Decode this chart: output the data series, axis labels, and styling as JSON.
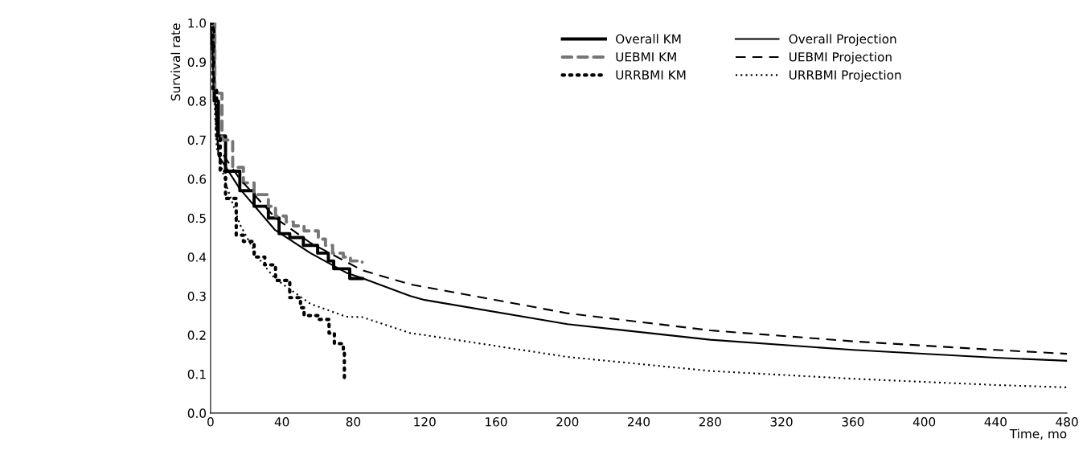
{
  "chart_data": {
    "type": "line",
    "xlabel": "Time, mo",
    "ylabel": "Survival rate",
    "xlim": [
      0,
      480
    ],
    "xticks": [
      0,
      40,
      80,
      120,
      160,
      200,
      240,
      280,
      320,
      360,
      400,
      440,
      480
    ],
    "ylim": [
      0,
      1
    ],
    "yticks": [
      {
        "value": 0,
        "label": "0.0"
      },
      0.1,
      0.2,
      0.3,
      0.4,
      0.5,
      0.6,
      0.7,
      0.8,
      0.9,
      {
        "value": 1,
        "label": "1.0"
      }
    ],
    "grid": false,
    "legend": "top right",
    "marker": "none",
    "series": [
      {
        "name": "Overall KM",
        "type": "step",
        "line_style": "solid",
        "color": "#000000",
        "x": [
          0,
          2,
          4.4,
          8.4,
          16.4,
          24.4,
          32.4,
          38.4,
          44.4,
          52,
          60,
          66,
          69,
          74,
          78,
          85
        ],
        "values": [
          1.0,
          0.8,
          0.71,
          0.62,
          0.57,
          0.53,
          0.5,
          0.46,
          0.45,
          0.43,
          0.41,
          0.39,
          0.37,
          0.37,
          0.345,
          0.345
        ]
      },
      {
        "name": "Overall Projection",
        "line_style": "solid",
        "color": "#000000",
        "x": [
          0,
          4.4,
          16.4,
          36,
          56,
          76,
          85,
          112,
          120,
          200,
          280,
          360,
          440,
          480
        ],
        "values": [
          1.0,
          0.66,
          0.575,
          0.47,
          0.41,
          0.36,
          0.346,
          0.3,
          0.29,
          0.228,
          0.188,
          0.162,
          0.142,
          0.134
        ]
      },
      {
        "name": "UEBMI KM",
        "type": "step",
        "line_style": "dashed",
        "color": "#767676",
        "x": [
          0,
          2.4,
          6.4,
          12.4,
          18.4,
          24.4,
          32.4,
          36.4,
          42.4,
          46.4,
          52.4,
          60.4,
          64.4,
          68.4,
          74.4,
          78.4,
          85
        ],
        "values": [
          1.0,
          0.82,
          0.7,
          0.63,
          0.59,
          0.56,
          0.53,
          0.505,
          0.49,
          0.48,
          0.467,
          0.446,
          0.43,
          0.41,
          0.4,
          0.39,
          0.387
        ]
      },
      {
        "name": "UEBMI Projection",
        "line_style": "dashed",
        "color": "#000000",
        "x": [
          0,
          4.4,
          16.4,
          36.4,
          56.4,
          76.4,
          85,
          112,
          200,
          280,
          360,
          440,
          480
        ],
        "values": [
          1.0,
          0.68,
          0.6,
          0.5,
          0.435,
          0.387,
          0.366,
          0.33,
          0.256,
          0.212,
          0.184,
          0.162,
          0.152
        ]
      },
      {
        "name": "URRBMI KM",
        "type": "step",
        "line_style": "dotted",
        "color": "#000000",
        "x": [
          0,
          1.4,
          3.4,
          5.4,
          8.4,
          14.4,
          18.4,
          24.4,
          30.4,
          36.4,
          44.4,
          50.4,
          52.4,
          56.4,
          60.4,
          66.4,
          69.4,
          73.4,
          74.4,
          75
        ],
        "values": [
          1.0,
          0.83,
          0.71,
          0.62,
          0.55,
          0.456,
          0.44,
          0.4,
          0.38,
          0.34,
          0.296,
          0.27,
          0.25,
          0.25,
          0.24,
          0.205,
          0.178,
          0.174,
          0.164,
          0.087
        ]
      },
      {
        "name": "URRBMI Projection",
        "line_style": "dotted",
        "color": "#000000",
        "x": [
          0,
          3.4,
          8.4,
          16.4,
          26.4,
          36,
          56,
          76,
          85,
          112,
          120,
          200,
          280,
          360,
          440,
          480
        ],
        "values": [
          1.0,
          0.68,
          0.59,
          0.484,
          0.4,
          0.345,
          0.28,
          0.247,
          0.246,
          0.205,
          0.2,
          0.144,
          0.108,
          0.088,
          0.072,
          0.066
        ]
      }
    ]
  }
}
